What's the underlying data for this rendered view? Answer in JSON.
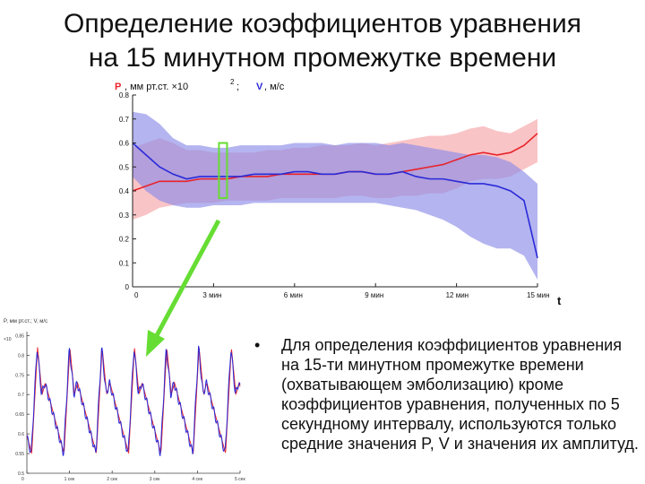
{
  "slide": {
    "title_line1": "Определение коэффициентов уравнения",
    "title_line2": "на 15 минутном промежутке времени",
    "bullet": "Для определения коэффициентов уравнения на 15-ти минутном промежутке времени (охватывающем эмболизацию) кроме коэффициентов уравнения, полученных по 5 секундному интервалу, используются только средние значения P, V и значения их амплитуд."
  },
  "colors": {
    "red": "#e8232a",
    "blue": "#2a2ad8",
    "red_band": "#f6a4a8",
    "blue_band": "#8c8ce8",
    "overlap": "#b07ac0",
    "green": "#66dd33"
  },
  "chart_data": [
    {
      "type": "line",
      "ylabel_p": "P",
      "ylabel_p_rest": ", мм рт.ст. ×10",
      "ylabel_exp": "2",
      "ylabel_sep": ";",
      "ylabel_v": "V",
      "ylabel_v_rest": ", м/с",
      "xlabel": "t",
      "ylim": [
        0,
        0.8
      ],
      "yticks": [
        "0",
        "0.1",
        "0.2",
        "0.3",
        "0.4",
        "0.5",
        "0.6",
        "0.7",
        "0.8"
      ],
      "xticks": [
        "0",
        "3 мин",
        "6 мин",
        "9 мин",
        "12 мин",
        "15 мин"
      ],
      "x": [
        0,
        0.5,
        1,
        1.5,
        2,
        2.5,
        3,
        3.5,
        4,
        4.5,
        5,
        5.5,
        6,
        6.5,
        7,
        7.5,
        8,
        8.5,
        9,
        9.5,
        10,
        10.5,
        11,
        11.5,
        12,
        12.5,
        13,
        13.5,
        14,
        14.5,
        15
      ],
      "series": [
        {
          "color": "red",
          "values": [
            0.4,
            0.42,
            0.44,
            0.44,
            0.44,
            0.45,
            0.45,
            0.45,
            0.46,
            0.46,
            0.46,
            0.47,
            0.47,
            0.47,
            0.47,
            0.47,
            0.48,
            0.48,
            0.47,
            0.47,
            0.48,
            0.49,
            0.5,
            0.51,
            0.53,
            0.55,
            0.56,
            0.55,
            0.56,
            0.59,
            0.64
          ],
          "upper": [
            0.58,
            0.6,
            0.62,
            0.6,
            0.57,
            0.57,
            0.56,
            0.56,
            0.56,
            0.56,
            0.57,
            0.57,
            0.58,
            0.58,
            0.59,
            0.59,
            0.59,
            0.6,
            0.59,
            0.6,
            0.61,
            0.62,
            0.63,
            0.63,
            0.64,
            0.66,
            0.67,
            0.65,
            0.64,
            0.67,
            0.7
          ],
          "lower": [
            0.28,
            0.3,
            0.33,
            0.34,
            0.35,
            0.35,
            0.35,
            0.36,
            0.36,
            0.36,
            0.36,
            0.37,
            0.37,
            0.37,
            0.37,
            0.37,
            0.38,
            0.38,
            0.37,
            0.37,
            0.38,
            0.38,
            0.39,
            0.39,
            0.41,
            0.44,
            0.45,
            0.45,
            0.46,
            0.49,
            0.52
          ]
        },
        {
          "color": "blue",
          "values": [
            0.6,
            0.55,
            0.5,
            0.47,
            0.45,
            0.46,
            0.46,
            0.46,
            0.46,
            0.47,
            0.47,
            0.47,
            0.48,
            0.48,
            0.47,
            0.47,
            0.48,
            0.48,
            0.47,
            0.47,
            0.48,
            0.46,
            0.45,
            0.45,
            0.44,
            0.43,
            0.43,
            0.42,
            0.4,
            0.36,
            0.12
          ],
          "upper": [
            0.73,
            0.72,
            0.68,
            0.62,
            0.59,
            0.59,
            0.58,
            0.58,
            0.59,
            0.59,
            0.59,
            0.59,
            0.6,
            0.6,
            0.6,
            0.59,
            0.6,
            0.6,
            0.6,
            0.59,
            0.6,
            0.59,
            0.58,
            0.57,
            0.56,
            0.55,
            0.55,
            0.54,
            0.52,
            0.48,
            0.43
          ],
          "lower": [
            0.46,
            0.4,
            0.36,
            0.34,
            0.33,
            0.33,
            0.34,
            0.34,
            0.34,
            0.35,
            0.35,
            0.35,
            0.35,
            0.35,
            0.35,
            0.35,
            0.35,
            0.35,
            0.35,
            0.34,
            0.33,
            0.32,
            0.3,
            0.28,
            0.25,
            0.21,
            0.18,
            0.16,
            0.16,
            0.13,
            0.03
          ]
        }
      ],
      "highlight_x": [
        3.2,
        3.5
      ]
    },
    {
      "type": "line",
      "ylabel": "P, мм рт.ст.; V, м/с",
      "scale": "×10",
      "yticks": [
        "0.85",
        "0.8",
        "0.75",
        "0.7",
        "0.65",
        "0.6",
        "0.55",
        "0.5"
      ],
      "xticks": [
        "0",
        "1 сек",
        "2 сек",
        "3 сек",
        "4 сек",
        "5 сек"
      ],
      "xlim": [
        0,
        5
      ],
      "ylim": [
        0.5,
        0.86
      ],
      "series": [
        {
          "color": "red",
          "shape": "pulse",
          "cycles": 6.6
        },
        {
          "color": "blue",
          "shape": "pulse",
          "cycles": 6.6
        }
      ]
    }
  ]
}
